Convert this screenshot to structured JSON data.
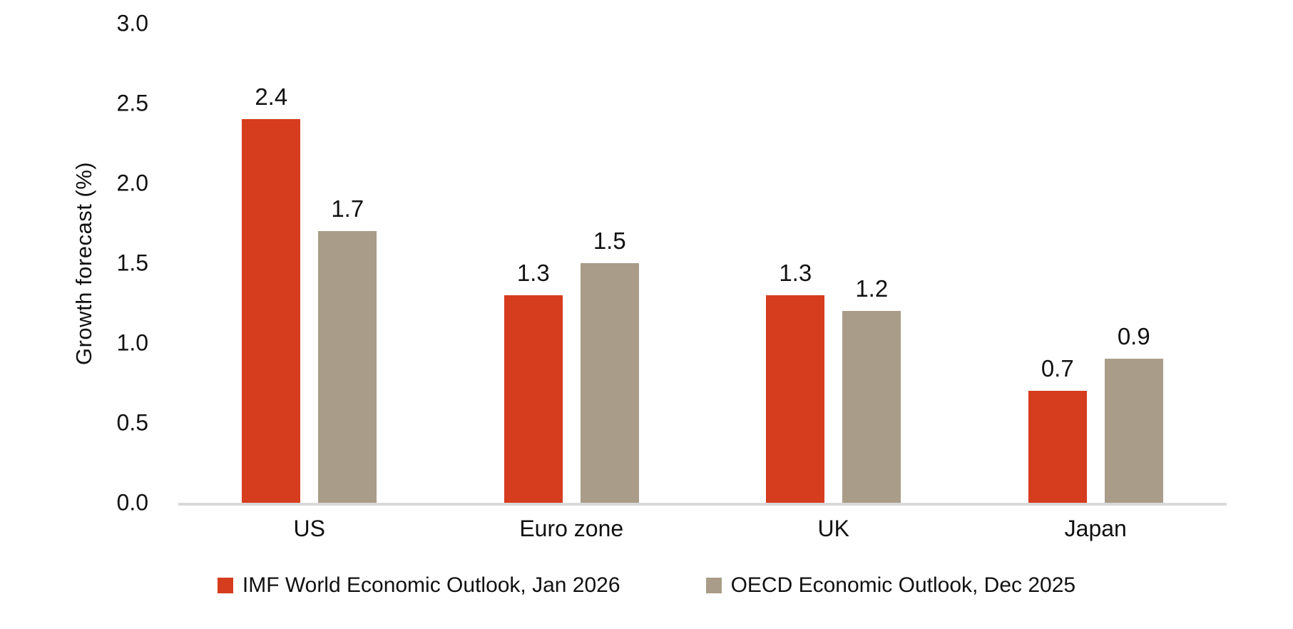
{
  "chart_data": {
    "type": "bar",
    "title": "",
    "xlabel": "",
    "ylabel": "Growth forecast (%)",
    "ylim": [
      0,
      3.0
    ],
    "yticks": [
      "3.0",
      "2.5",
      "2.0",
      "1.5",
      "1.0",
      "0.5",
      "0.0"
    ],
    "grid": false,
    "legend_position": "bottom",
    "value_label_decimals": 1,
    "categories": [
      "US",
      "Euro zone",
      "UK",
      "Japan"
    ],
    "series": [
      {
        "key": "imf",
        "name": "IMF World Economic Outlook, Jan 2026",
        "color": "#d63c1e",
        "values": [
          2.4,
          1.3,
          1.3,
          0.7
        ]
      },
      {
        "key": "oecd",
        "name": "OECD Economic Outlook, Dec 2025",
        "color": "#a99c89",
        "values": [
          1.7,
          1.5,
          1.2,
          0.9
        ]
      }
    ]
  },
  "colors": {
    "background": "#ffffff",
    "axis_line": "#d9d9d9",
    "text": "#111111"
  }
}
